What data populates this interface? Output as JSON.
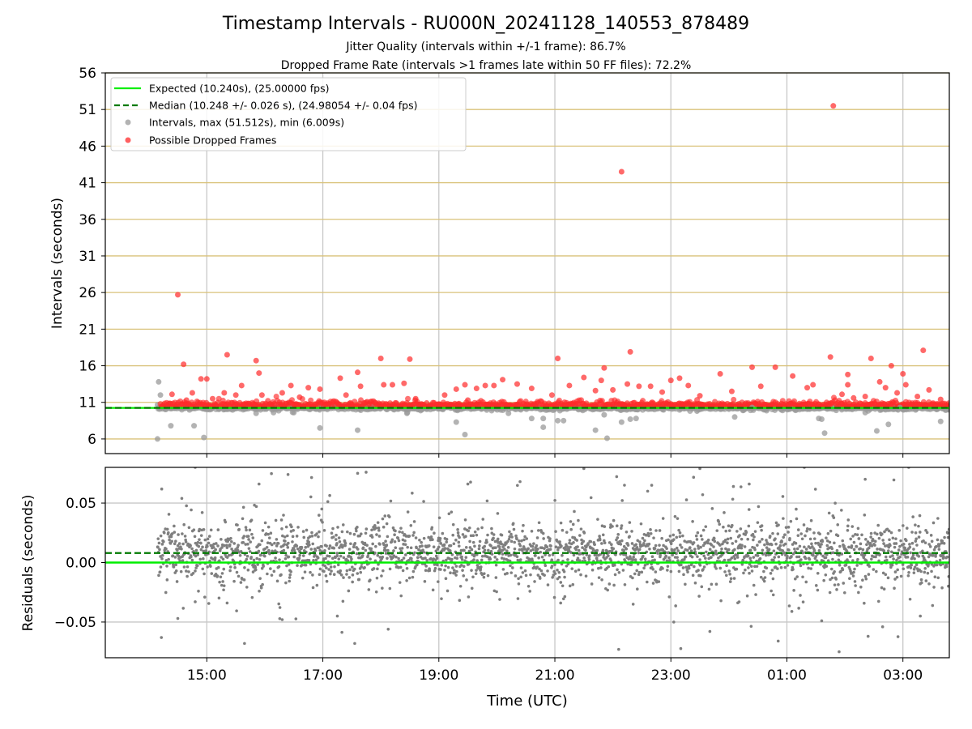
{
  "chart_data": [
    {
      "type": "scatter",
      "panel": "intervals",
      "title": "Timestamp Intervals - RU000N_20241128_140553_878489",
      "subtitle_1": "Jitter Quality (intervals within +/-1 frame): 86.7%",
      "subtitle_2": "Dropped Frame Rate (intervals >1 frames late within 50 FF files): 72.2%",
      "xlabel": "",
      "ylabel": "Intervals (seconds)",
      "ylim": [
        4,
        56
      ],
      "y_ticks": [
        "6",
        "11",
        "16",
        "21",
        "26",
        "31",
        "36",
        "41",
        "46",
        "51",
        "56"
      ],
      "grid": "horizontal gold lines at y ticks, vertical gray lines at x ticks",
      "legend_position": "top-left",
      "legend": [
        {
          "label": "Expected (10.240s), (25.00000 fps)",
          "style": "solid line",
          "color": "#00ee00"
        },
        {
          "label": "Median (10.248 +/- 0.026 s), (24.98054 +/- 0.04 fps)",
          "style": "dashed line",
          "color": "#007a00"
        },
        {
          "label": "Intervals, max (51.512s), min (6.009s)",
          "style": "marker",
          "color": "#999999"
        },
        {
          "label": "Possible Dropped Frames",
          "style": "marker",
          "color": "#ff2a2a"
        }
      ],
      "expected_interval": 10.24,
      "median_interval": 10.248,
      "series": [
        {
          "name": "Intervals, max (51.512s), min (6.009s)",
          "color": "#999999",
          "points": [
            [
              14.15,
              6.0
            ],
            [
              14.17,
              13.8
            ],
            [
              14.2,
              12.0
            ],
            [
              14.38,
              7.8
            ],
            [
              14.95,
              6.2
            ],
            [
              14.78,
              7.8
            ],
            [
              15.85,
              9.5
            ],
            [
              16.15,
              9.6
            ],
            [
              16.5,
              9.6
            ],
            [
              16.95,
              7.5
            ],
            [
              17.6,
              7.2
            ],
            [
              18.45,
              9.5
            ],
            [
              18.7,
              10.0
            ],
            [
              19.3,
              8.3
            ],
            [
              19.45,
              6.6
            ],
            [
              20.2,
              9.5
            ],
            [
              20.6,
              8.8
            ],
            [
              20.8,
              7.6
            ],
            [
              20.8,
              8.8
            ],
            [
              21.05,
              8.5
            ],
            [
              21.15,
              8.5
            ],
            [
              21.7,
              7.2
            ],
            [
              21.85,
              9.3
            ],
            [
              21.9,
              6.1
            ],
            [
              22.15,
              8.3
            ],
            [
              22.3,
              8.7
            ],
            [
              22.4,
              8.8
            ],
            [
              23.45,
              9.8
            ],
            [
              24.1,
              9.0
            ],
            [
              24.4,
              10.3
            ],
            [
              25.15,
              9.9
            ],
            [
              25.55,
              8.8
            ],
            [
              25.6,
              8.7
            ],
            [
              25.65,
              6.8
            ],
            [
              25.85,
              9.9
            ],
            [
              26.35,
              9.6
            ],
            [
              26.55,
              7.1
            ],
            [
              26.75,
              8.0
            ],
            [
              26.95,
              10.3
            ],
            [
              27.65,
              8.4
            ]
          ]
        },
        {
          "name": "Possible Dropped Frames",
          "color": "#ff2a2a",
          "points": [
            [
              14.4,
              12.1
            ],
            [
              14.5,
              25.7
            ],
            [
              14.6,
              16.2
            ],
            [
              14.65,
              11.3
            ],
            [
              14.75,
              12.3
            ],
            [
              14.9,
              14.2
            ],
            [
              15.0,
              14.2
            ],
            [
              15.1,
              11.5
            ],
            [
              15.3,
              12.3
            ],
            [
              15.35,
              17.5
            ],
            [
              15.5,
              12.0
            ],
            [
              15.6,
              13.3
            ],
            [
              15.85,
              16.7
            ],
            [
              15.9,
              15.0
            ],
            [
              15.95,
              12.0
            ],
            [
              16.3,
              12.3
            ],
            [
              16.45,
              13.3
            ],
            [
              16.6,
              11.7
            ],
            [
              16.75,
              13.0
            ],
            [
              16.95,
              12.8
            ],
            [
              17.3,
              14.3
            ],
            [
              17.4,
              12.0
            ],
            [
              17.6,
              15.1
            ],
            [
              17.65,
              13.2
            ],
            [
              18.0,
              17.0
            ],
            [
              18.05,
              13.4
            ],
            [
              18.2,
              13.4
            ],
            [
              18.4,
              13.6
            ],
            [
              18.5,
              16.9
            ],
            [
              18.6,
              11.5
            ],
            [
              19.1,
              12.0
            ],
            [
              19.3,
              12.8
            ],
            [
              19.45,
              13.4
            ],
            [
              19.5,
              11.3
            ],
            [
              19.65,
              12.9
            ],
            [
              19.8,
              13.3
            ],
            [
              19.95,
              13.3
            ],
            [
              20.1,
              14.1
            ],
            [
              20.35,
              13.5
            ],
            [
              20.6,
              12.9
            ],
            [
              20.95,
              12.0
            ],
            [
              21.05,
              17.0
            ],
            [
              21.25,
              13.3
            ],
            [
              21.5,
              14.4
            ],
            [
              21.7,
              12.6
            ],
            [
              21.8,
              14.0
            ],
            [
              21.85,
              15.7
            ],
            [
              22.0,
              12.7
            ],
            [
              22.15,
              42.5
            ],
            [
              22.25,
              13.5
            ],
            [
              22.3,
              17.9
            ],
            [
              22.45,
              13.2
            ],
            [
              22.65,
              13.2
            ],
            [
              22.85,
              12.4
            ],
            [
              23.0,
              14.0
            ],
            [
              23.15,
              14.3
            ],
            [
              23.3,
              13.3
            ],
            [
              23.5,
              11.9
            ],
            [
              23.85,
              14.9
            ],
            [
              24.05,
              12.5
            ],
            [
              24.4,
              15.8
            ],
            [
              24.55,
              13.2
            ],
            [
              24.8,
              15.8
            ],
            [
              25.1,
              14.6
            ],
            [
              25.35,
              13.0
            ],
            [
              25.45,
              13.4
            ],
            [
              25.75,
              17.2
            ],
            [
              25.8,
              51.5
            ],
            [
              25.95,
              12.1
            ],
            [
              26.05,
              13.4
            ],
            [
              26.05,
              14.8
            ],
            [
              26.15,
              11.6
            ],
            [
              26.35,
              11.8
            ],
            [
              26.45,
              17.0
            ],
            [
              26.6,
              13.8
            ],
            [
              26.7,
              13.0
            ],
            [
              26.8,
              16.0
            ],
            [
              26.9,
              12.3
            ],
            [
              27.0,
              14.9
            ],
            [
              27.05,
              13.4
            ],
            [
              27.25,
              11.8
            ],
            [
              27.35,
              18.1
            ],
            [
              27.45,
              12.7
            ],
            [
              27.65,
              11.4
            ]
          ]
        }
      ]
    },
    {
      "type": "scatter",
      "panel": "residuals",
      "xlabel": "Time (UTC)",
      "ylabel": "Residuals (seconds)",
      "ylim": [
        -0.08,
        0.08
      ],
      "y_ticks": [
        "0.05",
        "0.00",
        "−0.05"
      ],
      "x_ticks": [
        "15:00",
        "17:00",
        "19:00",
        "21:00",
        "23:00",
        "01:00",
        "03:00"
      ],
      "xlim": [
        13.25,
        27.8
      ],
      "grid": "gray lines at both axes ticks",
      "expected_residual": 0.0,
      "median_residual": 0.008,
      "series": [
        {
          "name": "",
          "color": "#7f7f7f",
          "time_range": [
            14.15,
            27.8
          ],
          "y_center": 0.008,
          "y_spread": 0.012,
          "outliers": [
            [
              14.5,
              -0.047
            ],
            [
              14.8,
              -0.033
            ],
            [
              15.35,
              -0.034
            ],
            [
              15.65,
              -0.068
            ],
            [
              16.3,
              -0.048
            ],
            [
              17.25,
              -0.045
            ],
            [
              17.55,
              -0.068
            ],
            [
              18.35,
              -0.028
            ],
            [
              20.05,
              -0.031
            ],
            [
              21.1,
              -0.034
            ],
            [
              22.1,
              -0.073
            ],
            [
              22.35,
              -0.035
            ],
            [
              23.05,
              -0.05
            ],
            [
              24.85,
              -0.066
            ],
            [
              25.6,
              -0.049
            ],
            [
              25.9,
              -0.075
            ],
            [
              26.4,
              -0.062
            ],
            [
              26.65,
              -0.054
            ],
            [
              27.3,
              -0.045
            ],
            [
              14.8,
              0.08
            ],
            [
              15.9,
              0.066
            ],
            [
              16.4,
              0.074
            ],
            [
              17.6,
              0.075
            ],
            [
              19.5,
              0.066
            ],
            [
              20.4,
              0.068
            ],
            [
              21.5,
              0.079
            ],
            [
              22.2,
              0.065
            ],
            [
              22.6,
              0.06
            ],
            [
              23.5,
              0.079
            ],
            [
              24.35,
              0.066
            ],
            [
              25.3,
              0.08
            ],
            [
              26.35,
              0.07
            ],
            [
              27.1,
              0.08
            ]
          ]
        }
      ]
    }
  ]
}
